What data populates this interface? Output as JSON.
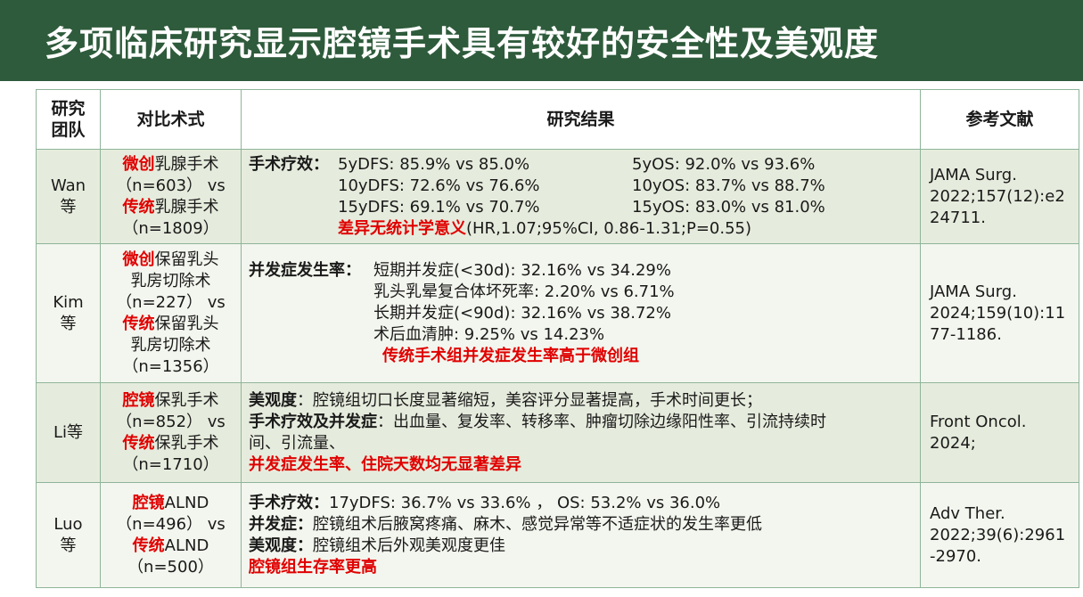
{
  "title": "多项临床研究显示腔镜手术具有较好的安全性及美观度",
  "headers": {
    "team": "研究\n团队",
    "team_l1": "研究",
    "team_l2": "团队",
    "method": "对比术式",
    "result": "研究结果",
    "ref": "参考文献"
  },
  "rows": [
    {
      "team_l1": "Wan",
      "team_l2": "等",
      "method": [
        {
          "red": "微创",
          "text": "乳腺手术"
        },
        {
          "text": "（n=603） vs"
        },
        {
          "red": "传统",
          "text": "乳腺手术"
        },
        {
          "text": "（n=1809）"
        }
      ],
      "result": {
        "label": "手术疗效：",
        "lines": [
          {
            "a": "5yDFS: 85.9% vs 85.0%",
            "b": "5yOS: 92.0% vs 93.6%"
          },
          {
            "a": "10yDFS: 72.6% vs 76.6%",
            "b": "10yOS: 83.7% vs 88.7%"
          },
          {
            "a": "15yDFS: 69.1% vs 70.7%",
            "b": "15yOS: 83.0% vs 81.0%"
          }
        ],
        "conclusion_red": "差异无统计学意义",
        "conclusion_rest": "(HR,1.07;95%CI, 0.86-1.31;P=0.55)"
      },
      "ref": [
        "JAMA Surg.",
        "2022;157(12):e2",
        "24711."
      ]
    },
    {
      "team_l1": "Kim",
      "team_l2": "等",
      "method": [
        {
          "red": "微创",
          "text": "保留乳头"
        },
        {
          "text": "乳房切除术"
        },
        {
          "text": "（n=227） vs"
        },
        {
          "red": "传统",
          "text": "保留乳头"
        },
        {
          "text": "乳房切除术"
        },
        {
          "text": "（n=1356）"
        }
      ],
      "result": {
        "label": "并发症发生率：",
        "lines": [
          "短期并发症(<30d): 32.16% vs 34.29%",
          "乳头乳晕复合体坏死率: 2.20% vs 6.71%",
          "长期并发症(<90d): 32.16% vs 38.72%",
          "术后血清肿: 9.25% vs 14.23%"
        ],
        "conclusion_red": "传统手术组并发症发生率高于微创组"
      },
      "ref": [
        "JAMA Surg.",
        "2024;159(10):11",
        "77-1186."
      ]
    },
    {
      "team_l1": "Li等",
      "method": [
        {
          "red": "腔镜",
          "text": "保乳手术"
        },
        {
          "text": "（n=852） vs"
        },
        {
          "red": "传统",
          "text": "保乳手术"
        },
        {
          "text": "（n=1710）"
        }
      ],
      "result": {
        "l1_bold": "美观度",
        "l1_text": "：腔镜组切口长度显著缩短，美容评分显著提高，手术时间更长；",
        "l2_bold": "手术疗效及并发症",
        "l2_text": "：出血量、复发率、转移率、肿瘤切除边缘阳性率、引流持续时",
        "l3_text": "间、引流量、",
        "conclusion_red": "并发症发生率、住院天数均无显著差异"
      },
      "ref": [
        "Front Oncol.",
        "2024;"
      ]
    },
    {
      "team_l1": "Luo",
      "team_l2": "等",
      "method": [
        {
          "red": "腔镜",
          "text": "ALND"
        },
        {
          "text": "（n=496） vs"
        },
        {
          "red": "传统",
          "text": "ALND"
        },
        {
          "text": "（n=500）"
        }
      ],
      "result": {
        "l1_bold": "手术疗效：",
        "l1_text": "17yDFS: 36.7% vs 33.6% ， OS: 53.2% vs 36.0%",
        "l2_bold": "并发症：",
        "l2_text": "腔镜组术后腋窝疼痛、麻木、感觉异常等不适症状的发生率更低",
        "l3_bold": "美观度：",
        "l3_text": "腔镜组术后外观美观度更佳",
        "conclusion_red": "腔镜组生存率更高"
      },
      "ref": [
        "Adv Ther.",
        "2022;39(6):2961",
        "-2970."
      ]
    }
  ]
}
